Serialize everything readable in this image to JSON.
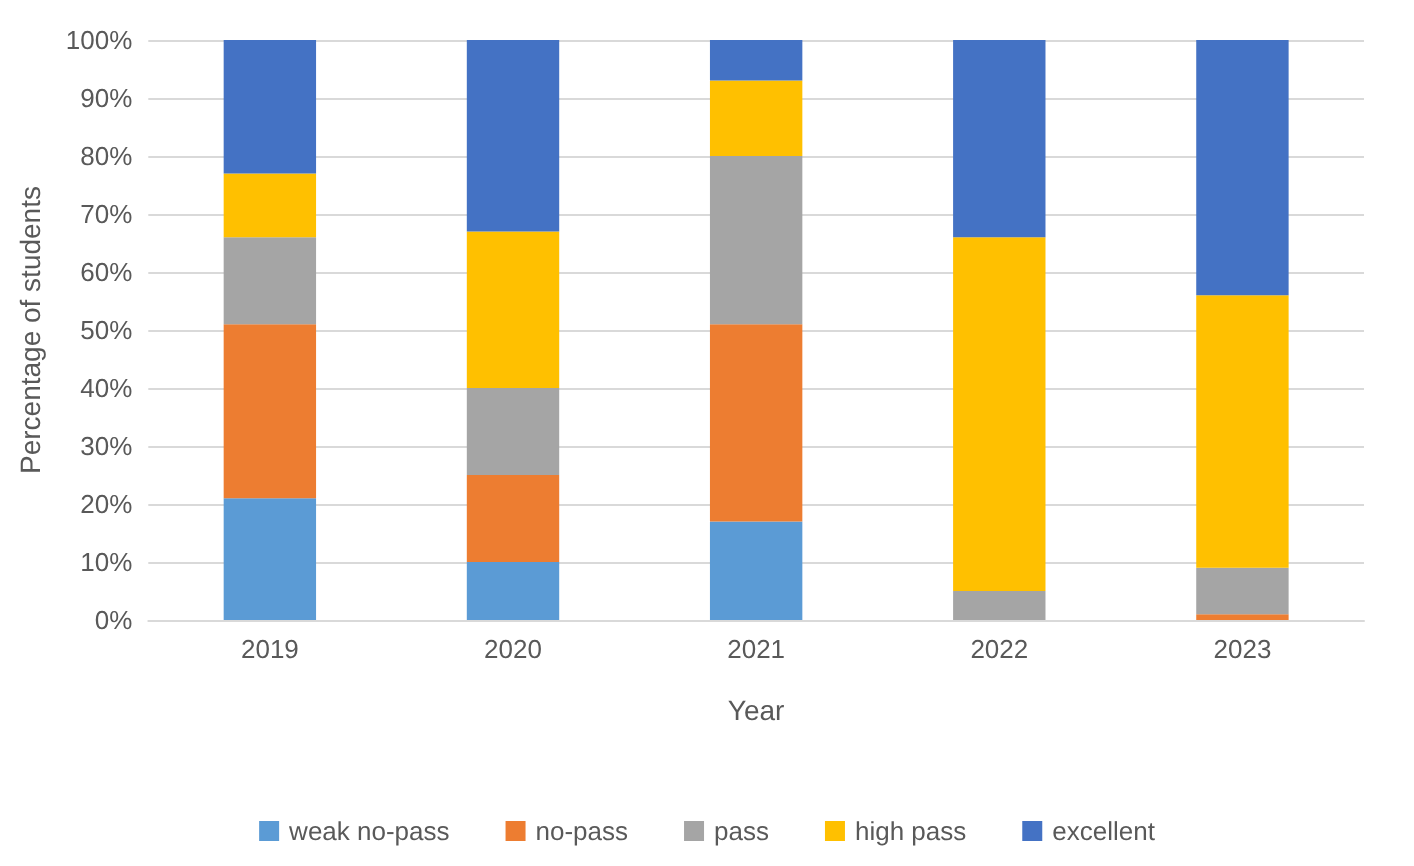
{
  "chart_data": {
    "type": "bar",
    "stacked": true,
    "xlabel": "Year",
    "ylabel": "Percentage of students",
    "categories": [
      "2019",
      "2020",
      "2021",
      "2022",
      "2023"
    ],
    "series": [
      {
        "name": "weak no-pass",
        "color": "#5b9bd5",
        "values": [
          21,
          10,
          17,
          0,
          0
        ]
      },
      {
        "name": "no-pass",
        "color": "#ed7d31",
        "values": [
          30,
          15,
          34,
          0,
          1
        ]
      },
      {
        "name": "pass",
        "color": "#a5a5a5",
        "values": [
          15,
          15,
          29,
          5,
          8
        ]
      },
      {
        "name": "high pass",
        "color": "#ffc000",
        "values": [
          11,
          27,
          13,
          61,
          47
        ]
      },
      {
        "name": "excellent",
        "color": "#4472c4",
        "values": [
          23,
          33,
          7,
          34,
          44
        ]
      }
    ],
    "ylim": [
      0,
      100
    ],
    "yticks": [
      {
        "value": 0,
        "label": "0%"
      },
      {
        "value": 10,
        "label": "10%"
      },
      {
        "value": 20,
        "label": "20%"
      },
      {
        "value": 30,
        "label": "30%"
      },
      {
        "value": 40,
        "label": "40%"
      },
      {
        "value": 50,
        "label": "50%"
      },
      {
        "value": 60,
        "label": "60%"
      },
      {
        "value": 70,
        "label": "70%"
      },
      {
        "value": 80,
        "label": "80%"
      },
      {
        "value": 90,
        "label": "90%"
      },
      {
        "value": 100,
        "label": "100%"
      }
    ],
    "grid": "y",
    "legend": "bottom"
  }
}
